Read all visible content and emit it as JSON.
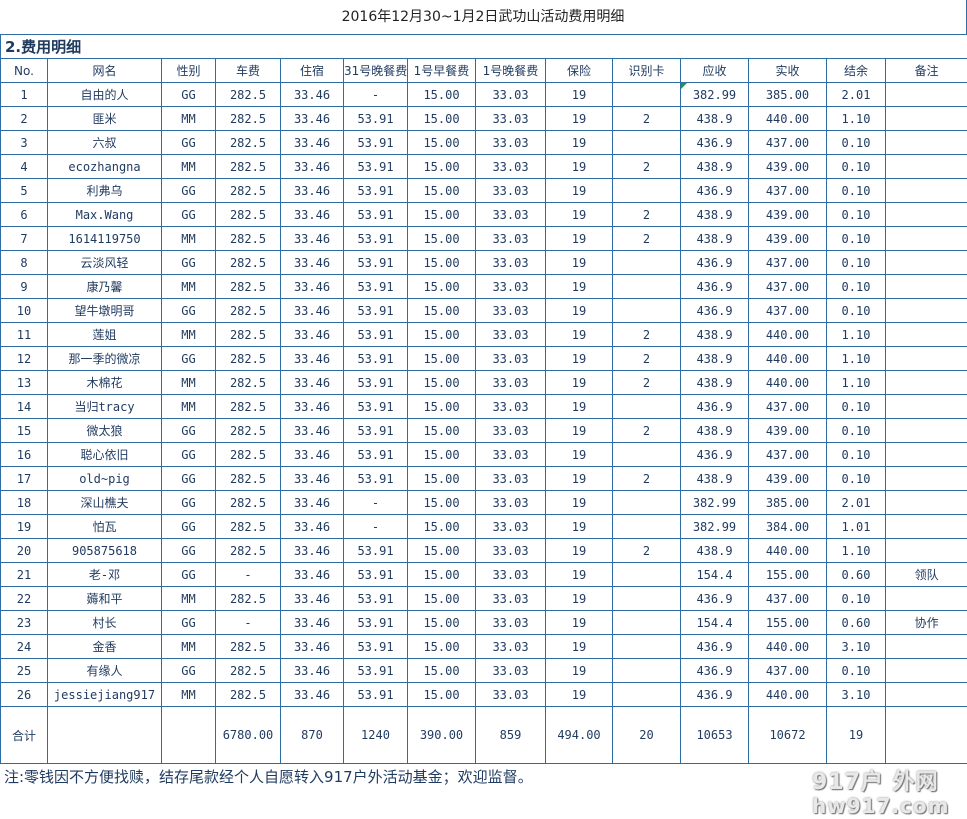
{
  "title": "2016年12月30~1月2日武功山活动费用明细",
  "section": "2.费用明细",
  "headers": [
    "No.",
    "网名",
    "性别",
    "车费",
    "住宿",
    "31号晚餐费",
    "1号早餐费",
    "1号晚餐费",
    "保险",
    "识别卡",
    "应收",
    "实收",
    "结余",
    "备注"
  ],
  "rows": [
    [
      "1",
      "自由的人",
      "GG",
      "282.5",
      "33.46",
      "-",
      "15.00",
      "33.03",
      "19",
      "",
      "382.99",
      "385.00",
      "2.01",
      ""
    ],
    [
      "2",
      "匪米",
      "MM",
      "282.5",
      "33.46",
      "53.91",
      "15.00",
      "33.03",
      "19",
      "2",
      "438.9",
      "440.00",
      "1.10",
      ""
    ],
    [
      "3",
      "六叔",
      "GG",
      "282.5",
      "33.46",
      "53.91",
      "15.00",
      "33.03",
      "19",
      "",
      "436.9",
      "437.00",
      "0.10",
      ""
    ],
    [
      "4",
      "ecozhangna",
      "MM",
      "282.5",
      "33.46",
      "53.91",
      "15.00",
      "33.03",
      "19",
      "2",
      "438.9",
      "439.00",
      "0.10",
      ""
    ],
    [
      "5",
      "利弗乌",
      "GG",
      "282.5",
      "33.46",
      "53.91",
      "15.00",
      "33.03",
      "19",
      "",
      "436.9",
      "437.00",
      "0.10",
      ""
    ],
    [
      "6",
      "Max.Wang",
      "GG",
      "282.5",
      "33.46",
      "53.91",
      "15.00",
      "33.03",
      "19",
      "2",
      "438.9",
      "439.00",
      "0.10",
      ""
    ],
    [
      "7",
      "1614119750",
      "MM",
      "282.5",
      "33.46",
      "53.91",
      "15.00",
      "33.03",
      "19",
      "2",
      "438.9",
      "439.00",
      "0.10",
      ""
    ],
    [
      "8",
      "云淡风轻",
      "GG",
      "282.5",
      "33.46",
      "53.91",
      "15.00",
      "33.03",
      "19",
      "",
      "436.9",
      "437.00",
      "0.10",
      ""
    ],
    [
      "9",
      "康乃馨",
      "MM",
      "282.5",
      "33.46",
      "53.91",
      "15.00",
      "33.03",
      "19",
      "",
      "436.9",
      "437.00",
      "0.10",
      ""
    ],
    [
      "10",
      "望牛墩明哥",
      "GG",
      "282.5",
      "33.46",
      "53.91",
      "15.00",
      "33.03",
      "19",
      "",
      "436.9",
      "437.00",
      "0.10",
      ""
    ],
    [
      "11",
      "莲姐",
      "MM",
      "282.5",
      "33.46",
      "53.91",
      "15.00",
      "33.03",
      "19",
      "2",
      "438.9",
      "440.00",
      "1.10",
      ""
    ],
    [
      "12",
      "那一季的微凉",
      "GG",
      "282.5",
      "33.46",
      "53.91",
      "15.00",
      "33.03",
      "19",
      "2",
      "438.9",
      "440.00",
      "1.10",
      ""
    ],
    [
      "13",
      "木棉花",
      "MM",
      "282.5",
      "33.46",
      "53.91",
      "15.00",
      "33.03",
      "19",
      "2",
      "438.9",
      "440.00",
      "1.10",
      ""
    ],
    [
      "14",
      "当归tracy",
      "MM",
      "282.5",
      "33.46",
      "53.91",
      "15.00",
      "33.03",
      "19",
      "",
      "436.9",
      "437.00",
      "0.10",
      ""
    ],
    [
      "15",
      "微太狼",
      "GG",
      "282.5",
      "33.46",
      "53.91",
      "15.00",
      "33.03",
      "19",
      "2",
      "438.9",
      "439.00",
      "0.10",
      ""
    ],
    [
      "16",
      "聪心依旧",
      "GG",
      "282.5",
      "33.46",
      "53.91",
      "15.00",
      "33.03",
      "19",
      "",
      "436.9",
      "437.00",
      "0.10",
      ""
    ],
    [
      "17",
      "old~pig",
      "GG",
      "282.5",
      "33.46",
      "53.91",
      "15.00",
      "33.03",
      "19",
      "2",
      "438.9",
      "439.00",
      "0.10",
      ""
    ],
    [
      "18",
      "深山樵夫",
      "GG",
      "282.5",
      "33.46",
      "-",
      "15.00",
      "33.03",
      "19",
      "",
      "382.99",
      "385.00",
      "2.01",
      ""
    ],
    [
      "19",
      "怕瓦",
      "GG",
      "282.5",
      "33.46",
      "-",
      "15.00",
      "33.03",
      "19",
      "",
      "382.99",
      "384.00",
      "1.01",
      ""
    ],
    [
      "20",
      "905875618",
      "GG",
      "282.5",
      "33.46",
      "53.91",
      "15.00",
      "33.03",
      "19",
      "2",
      "438.9",
      "440.00",
      "1.10",
      ""
    ],
    [
      "21",
      "老-邓",
      "GG",
      "-",
      "33.46",
      "53.91",
      "15.00",
      "33.03",
      "19",
      "",
      "154.4",
      "155.00",
      "0.60",
      "领队"
    ],
    [
      "22",
      "薅和平",
      "MM",
      "282.5",
      "33.46",
      "53.91",
      "15.00",
      "33.03",
      "19",
      "",
      "436.9",
      "437.00",
      "0.10",
      ""
    ],
    [
      "23",
      "村长",
      "GG",
      "-",
      "33.46",
      "53.91",
      "15.00",
      "33.03",
      "19",
      "",
      "154.4",
      "155.00",
      "0.60",
      "协作"
    ],
    [
      "24",
      "金香",
      "MM",
      "282.5",
      "33.46",
      "53.91",
      "15.00",
      "33.03",
      "19",
      "",
      "436.9",
      "440.00",
      "3.10",
      ""
    ],
    [
      "25",
      "有缘人",
      "GG",
      "282.5",
      "33.46",
      "53.91",
      "15.00",
      "33.03",
      "19",
      "",
      "436.9",
      "437.00",
      "0.10",
      ""
    ],
    [
      "26",
      "jessiejiang917",
      "MM",
      "282.5",
      "33.46",
      "53.91",
      "15.00",
      "33.03",
      "19",
      "",
      "436.9",
      "440.00",
      "3.10",
      ""
    ]
  ],
  "total": [
    "合计",
    "",
    "",
    "6780.00",
    "870",
    "1240",
    "390.00",
    "859",
    "494.00",
    "20",
    "10653",
    "10672",
    "19",
    ""
  ],
  "note": "注:零钱因不方便找赎，结存尾款经个人自愿转入917户外活动基金；欢迎监督。",
  "watermark": {
    "line1": "917户 外网",
    "line2": "hw917.com"
  },
  "colors": {
    "grid": "#2e6da4",
    "text": "#1f3a5f",
    "comment_marker": "#1a9c3a"
  }
}
